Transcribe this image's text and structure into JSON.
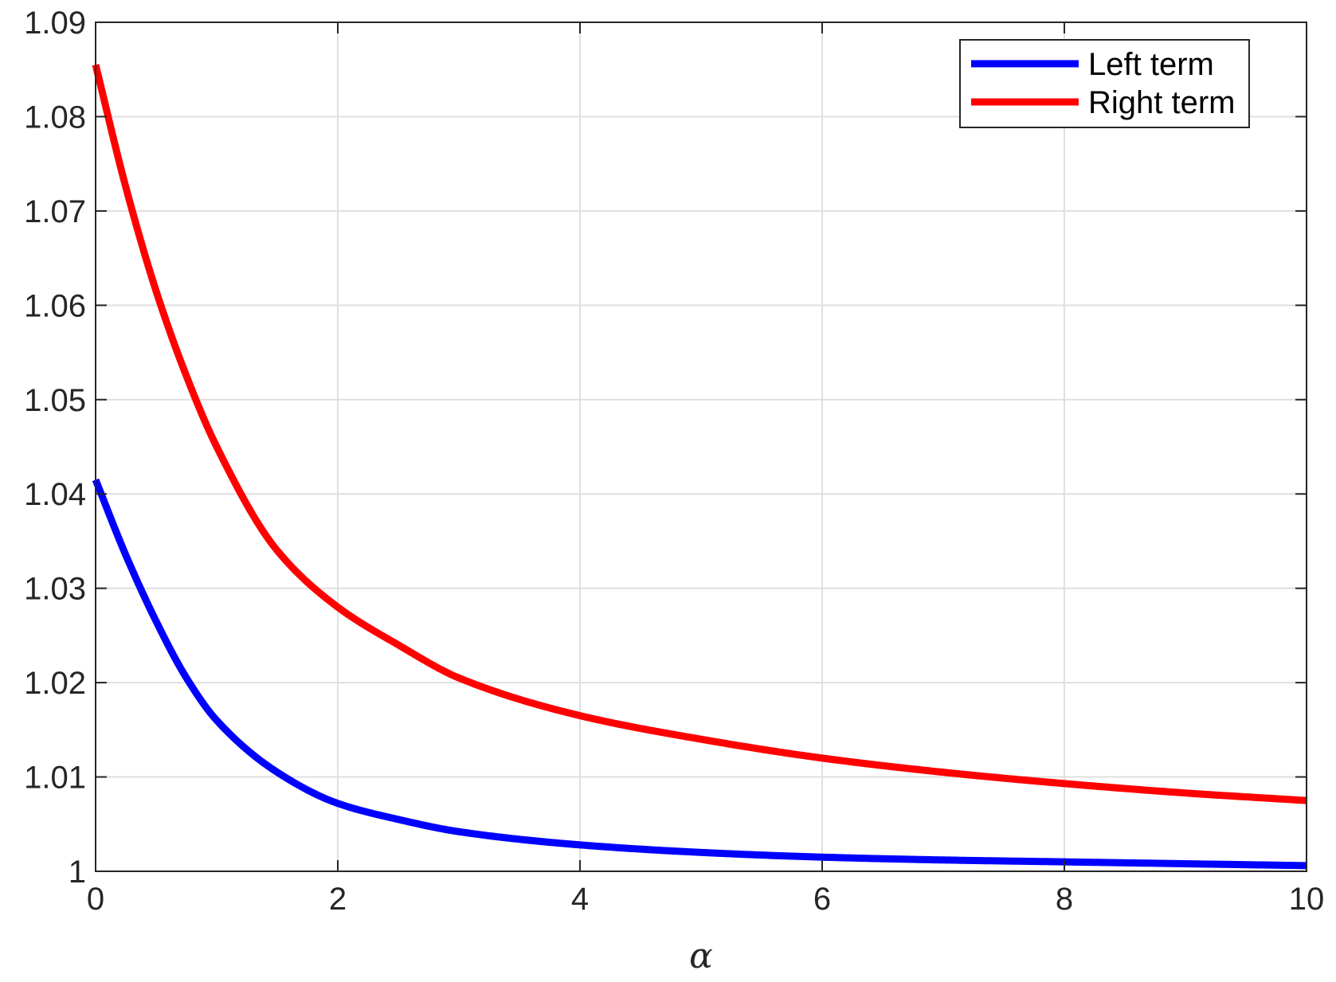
{
  "chart_data": {
    "type": "line",
    "title": "",
    "xlabel": "α",
    "ylabel": "",
    "xlim": [
      0,
      10
    ],
    "ylim": [
      1,
      1.09
    ],
    "grid": true,
    "legend_position": "top-right",
    "x_ticks": [
      0,
      2,
      4,
      6,
      8,
      10
    ],
    "x_tick_labels": [
      "0",
      "2",
      "4",
      "6",
      "8",
      "10"
    ],
    "y_ticks": [
      1,
      1.01,
      1.02,
      1.03,
      1.04,
      1.05,
      1.06,
      1.07,
      1.08,
      1.09
    ],
    "y_tick_labels": [
      "1",
      "1.01",
      "1.02",
      "1.03",
      "1.04",
      "1.05",
      "1.06",
      "1.07",
      "1.08",
      "1.09"
    ],
    "series": [
      {
        "name": "Left term",
        "color": "#0000ff",
        "x": [
          0,
          0.25,
          0.5,
          0.75,
          1,
          1.5,
          2,
          2.5,
          3,
          4,
          5,
          6,
          7,
          8,
          9,
          10
        ],
        "y": [
          1.0415,
          1.0335,
          1.0265,
          1.0205,
          1.016,
          1.0105,
          1.0072,
          1.0055,
          1.0042,
          1.0028,
          1.002,
          1.0015,
          1.0012,
          1.001,
          1.0008,
          1.0006
        ]
      },
      {
        "name": "Right term",
        "color": "#ff0000",
        "x": [
          0,
          0.25,
          0.5,
          0.75,
          1,
          1.5,
          2,
          2.5,
          3,
          4,
          5,
          6,
          7,
          8,
          9,
          10
        ],
        "y": [
          1.0855,
          1.0725,
          1.0615,
          1.0525,
          1.045,
          1.034,
          1.028,
          1.024,
          1.0205,
          1.0165,
          1.014,
          1.012,
          1.0105,
          1.0093,
          1.0083,
          1.0075
        ]
      }
    ]
  }
}
